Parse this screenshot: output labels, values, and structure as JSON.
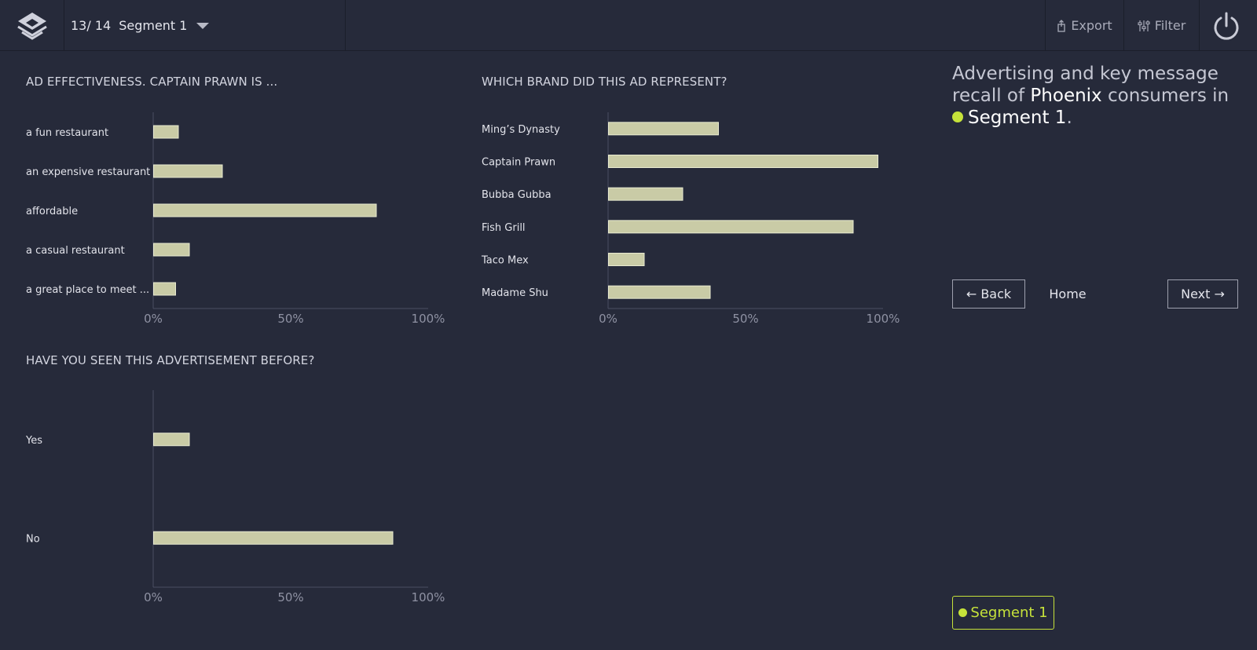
{
  "header": {
    "counter": "13/ 14",
    "segment": "Segment 1",
    "export_label": "Export",
    "filter_label": "Filter"
  },
  "panel": {
    "headline_pre": "Advertising and key message recall of ",
    "headline_city": "Phoenix",
    "headline_mid": " consumers in",
    "headline_segment": "Segment 1",
    "headline_end": ".",
    "back_label": "← Back",
    "home_label": "Home",
    "next_label": "Next →",
    "badge_label": "Segment 1",
    "accent_color": "#c6e23a"
  },
  "chart_data": [
    {
      "type": "bar",
      "orientation": "horizontal",
      "title": "AD EFFECTIVENESS. CAPTAIN PRAWN IS ...",
      "categories": [
        "a fun restaurant",
        "an expensive restaurant",
        "affordable",
        "a casual restaurant",
        "a great place to meet ..."
      ],
      "values": [
        9,
        25,
        81,
        13,
        8
      ],
      "ticks": [
        "0%",
        "50%",
        "100%"
      ],
      "xlim": [
        0,
        100
      ]
    },
    {
      "type": "bar",
      "orientation": "horizontal",
      "title": "WHICH BRAND DID THIS AD REPRESENT?",
      "categories": [
        "Ming’s Dynasty",
        "Captain Prawn",
        "Bubba Gubba",
        "Fish Grill",
        "Taco Mex",
        "Madame Shu"
      ],
      "values": [
        40,
        98,
        27,
        89,
        13,
        37
      ],
      "ticks": [
        "0%",
        "50%",
        "100%"
      ],
      "xlim": [
        0,
        100
      ]
    },
    {
      "type": "bar",
      "orientation": "horizontal",
      "title": "HAVE YOU SEEN THIS ADVERTISEMENT BEFORE?",
      "categories": [
        "Yes",
        "No"
      ],
      "values": [
        13,
        87
      ],
      "ticks": [
        "0%",
        "50%",
        "100%"
      ],
      "xlim": [
        0,
        100
      ]
    }
  ]
}
